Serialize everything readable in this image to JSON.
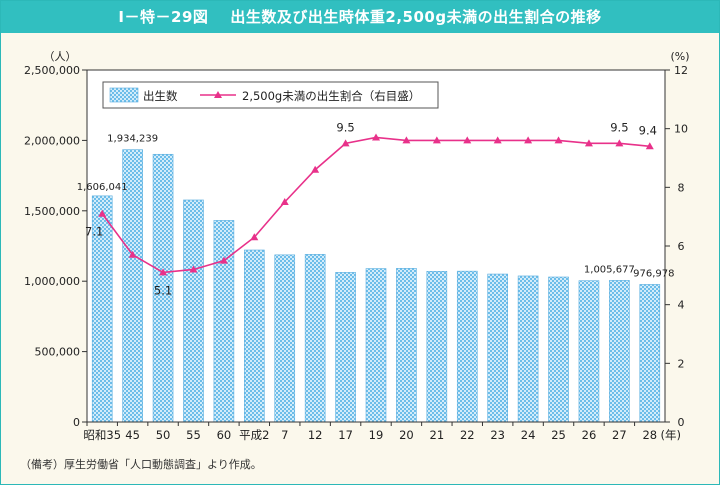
{
  "chart_data": {
    "type": "bar",
    "figure_number": "Ⅰ－特－29図",
    "title": "出生数及び出生時体重2,500g未満の出生割合の推移",
    "y_unit_left": "（人）",
    "y_unit_right": "(%)",
    "x_unit": "(年)",
    "ylim_left": [
      0,
      2500000
    ],
    "ylim_right": [
      0,
      12
    ],
    "yticks_left": [
      "0",
      "500,000",
      "1,000,000",
      "1,500,000",
      "2,000,000",
      "2,500,000"
    ],
    "yticks_right": [
      "0",
      "2",
      "4",
      "6",
      "8",
      "10",
      "12"
    ],
    "categories": [
      "昭和35",
      "45",
      "50",
      "55",
      "60",
      "平成2",
      "7",
      "12",
      "17",
      "19",
      "20",
      "21",
      "22",
      "23",
      "24",
      "25",
      "26",
      "27",
      "28"
    ],
    "series": [
      {
        "name": "出生数",
        "kind": "bar",
        "axis": "left",
        "color": "#7fc8ee",
        "values": [
          1606041,
          1934239,
          1901440,
          1576889,
          1431577,
          1221585,
          1187064,
          1190547,
          1062530,
          1089818,
          1091156,
          1070035,
          1071304,
          1050806,
          1037231,
          1029816,
          1003539,
          1005677,
          976978
        ]
      },
      {
        "name": "2,500g未満の出生割合（右目盛）",
        "kind": "line",
        "axis": "right",
        "color": "#e8318a",
        "values": [
          7.1,
          5.7,
          5.1,
          5.2,
          5.5,
          6.3,
          7.5,
          8.6,
          9.5,
          9.7,
          9.6,
          9.6,
          9.6,
          9.6,
          9.6,
          9.6,
          9.5,
          9.5,
          9.4
        ]
      }
    ],
    "bar_labels": [
      {
        "index": 0,
        "text": "1,606,041"
      },
      {
        "index": 1,
        "text": "1,934,239"
      },
      {
        "index": 17,
        "text": "1,005,677"
      },
      {
        "index": 18,
        "text": "976,978"
      }
    ],
    "line_labels": [
      {
        "index": 0,
        "text": "7.1"
      },
      {
        "index": 2,
        "text": "5.1"
      },
      {
        "index": 8,
        "text": "9.5"
      },
      {
        "index": 17,
        "text": "9.5"
      },
      {
        "index": 18,
        "text": "9.4"
      }
    ],
    "legend": {
      "position": "top-left",
      "bar_label": "出生数",
      "line_label": "2,500g未満の出生割合（右目盛）"
    }
  },
  "note": "（備考）厚生労働省「人口動態調査」より作成。"
}
